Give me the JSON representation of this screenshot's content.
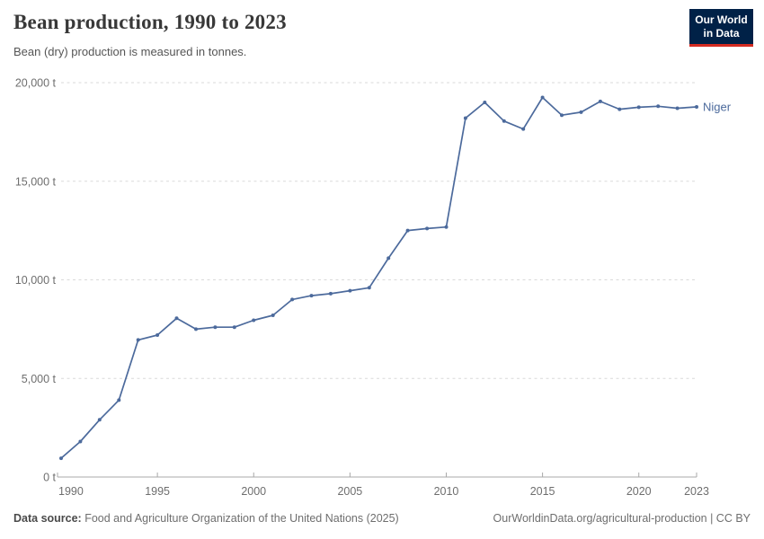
{
  "header": {
    "title": "Bean production, 1990 to 2023",
    "subtitle": "Bean (dry) production is measured in tonnes.",
    "logo_line1": "Our World",
    "logo_line2": "in Data"
  },
  "chart_data": {
    "type": "line",
    "title": "Bean production, 1990 to 2023",
    "subtitle": "Bean (dry) production is measured in tonnes.",
    "unit": "t",
    "x": [
      1990,
      1991,
      1992,
      1993,
      1994,
      1995,
      1996,
      1997,
      1998,
      1999,
      2000,
      2001,
      2002,
      2003,
      2004,
      2005,
      2006,
      2007,
      2008,
      2009,
      2010,
      2011,
      2012,
      2013,
      2014,
      2015,
      2016,
      2017,
      2018,
      2019,
      2020,
      2021,
      2022,
      2023
    ],
    "series": [
      {
        "name": "Niger",
        "color": "#4c6a9c",
        "values": [
          950,
          1800,
          2900,
          3900,
          6950,
          7200,
          8050,
          7500,
          7600,
          7600,
          7950,
          8200,
          9000,
          9200,
          9300,
          9450,
          9600,
          11100,
          12500,
          12600,
          12680,
          18200,
          19000,
          18050,
          17650,
          19250,
          18350,
          18500,
          19050,
          18650,
          18750,
          18800,
          18700,
          18770
        ]
      }
    ],
    "xlim": [
      1990,
      2023
    ],
    "ylim": [
      0,
      20000
    ],
    "x_ticks": [
      1990,
      1995,
      2000,
      2005,
      2010,
      2015,
      2020,
      2023
    ],
    "y_ticks": [
      0,
      5000,
      10000,
      15000,
      20000
    ],
    "y_tick_labels": [
      "0 t",
      "5,000 t",
      "10,000 t",
      "15,000 t",
      "20,000 t"
    ],
    "grid": "horizontal-dashed",
    "legend_position": "line-end-label",
    "colors": {
      "line": "#4c6a9c",
      "grid": "#dadada",
      "axis": "#a8a8a8",
      "tick_label": "#6e6e6e"
    }
  },
  "footer": {
    "source_label": "Data source:",
    "source_text": " Food and Agriculture Organization of the United Nations (2025)",
    "rights": "OurWorldinData.org/agricultural-production | CC BY"
  }
}
